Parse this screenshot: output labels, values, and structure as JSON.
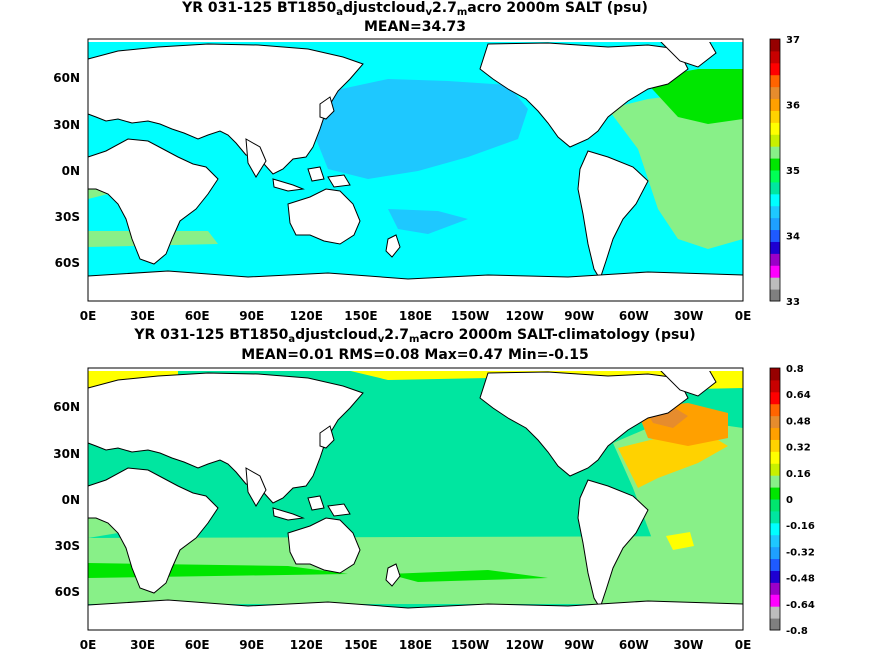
{
  "panel1": {
    "title_pre": "YR 031-125 BT1850",
    "title_sub1": "a",
    "title_mid": "djustcloud",
    "title_sub2": "v",
    "title_mid2": "2.7",
    "title_sub3": "m",
    "title_post": "acro 2000m SALT (psu)",
    "stats": "MEAN=34.73",
    "colorbar_labels": [
      "37",
      "36",
      "35",
      "34",
      "33"
    ],
    "colors": [
      "#7f7f7f",
      "#bdbdbd",
      "#ff00ff",
      "#9b00c8",
      "#1e00d2",
      "#1e5aff",
      "#1ea0ff",
      "#1ec8ff",
      "#00ffff",
      "#00e6a0",
      "#00ff55",
      "#00e600",
      "#88f088",
      "#c8f000",
      "#ffff00",
      "#ffd200",
      "#ffa000",
      "#e68c2d",
      "#ff6400",
      "#ff0000",
      "#c80000",
      "#960000"
    ]
  },
  "panel2": {
    "title_pre": "YR 031-125 BT1850",
    "title_sub1": "a",
    "title_mid": "djustcloud",
    "title_sub2": "v",
    "title_mid2": "2.7",
    "title_sub3": "m",
    "title_post": "acro 2000m SALT-climatology (psu)",
    "stats": "MEAN=0.01   RMS=0.08   Max=0.47   Min=-0.15",
    "colorbar_labels": [
      "0.8",
      "0.64",
      "0.48",
      "0.32",
      "0.16",
      "0",
      "-0.16",
      "-0.32",
      "-0.48",
      "-0.64",
      "-0.8"
    ],
    "colors": [
      "#7f7f7f",
      "#bdbdbd",
      "#ff00ff",
      "#9b00c8",
      "#1e00d2",
      "#1e5aff",
      "#1ea0ff",
      "#1ec8ff",
      "#00ffff",
      "#00e6a0",
      "#00e66e",
      "#00e600",
      "#88f088",
      "#c8f000",
      "#ffff00",
      "#ffd200",
      "#ffa000",
      "#e68c2d",
      "#ff6400",
      "#ff0000",
      "#c80000",
      "#960000"
    ]
  },
  "lat_labels": [
    "60N",
    "30N",
    "0N",
    "30S",
    "60S"
  ],
  "lon_labels": [
    "0E",
    "30E",
    "60E",
    "90E",
    "120E",
    "150E",
    "180E",
    "150W",
    "120W",
    "90W",
    "60W",
    "30W",
    "0E"
  ]
}
